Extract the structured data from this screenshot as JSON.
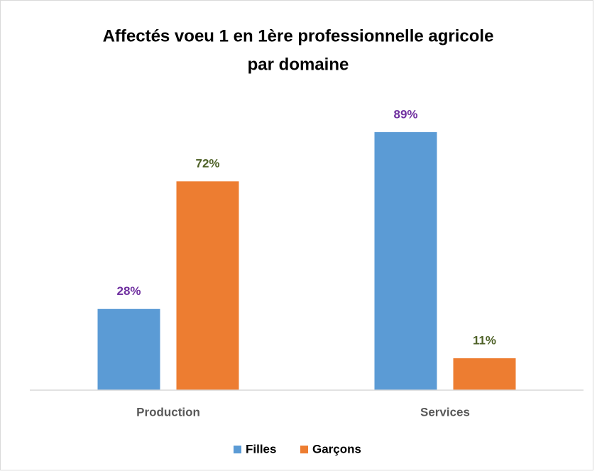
{
  "chart_data": {
    "type": "bar",
    "title": [
      "Affectés voeu 1 en 1ère professionnelle agricole",
      "par domaine"
    ],
    "categories": [
      "Production",
      "Services"
    ],
    "series": [
      {
        "name": "Filles",
        "color": "#5b9bd5",
        "label_color": "#7030a0",
        "values": [
          28,
          89
        ],
        "value_labels": [
          "28%",
          "89%"
        ]
      },
      {
        "name": "Garçons",
        "color": "#ed7d31",
        "label_color": "#4f6228",
        "values": [
          72,
          11
        ],
        "value_labels": [
          "72%",
          "11%"
        ]
      }
    ],
    "ylim": [
      0,
      100
    ],
    "legend": "bottom"
  }
}
